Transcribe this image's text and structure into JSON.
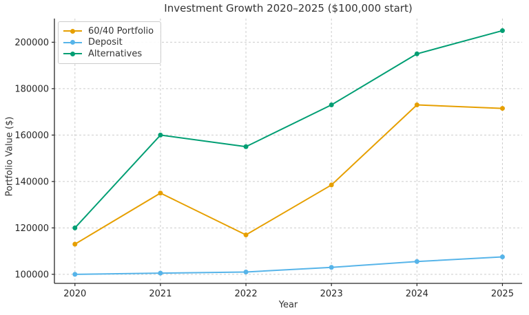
{
  "chart_data": {
    "type": "line",
    "title": "Investment Growth 2020–2025 ($100,000 start)",
    "xlabel": "Year",
    "ylabel": "Portfolio Value ($)",
    "x": [
      2020,
      2021,
      2022,
      2023,
      2024,
      2025
    ],
    "series": [
      {
        "name": "60/40 Portfolio",
        "color": "#E69F00",
        "values": [
          113000,
          135000,
          117000,
          138500,
          173000,
          171500
        ]
      },
      {
        "name": "Deposit",
        "color": "#56B4E9",
        "values": [
          100000,
          100500,
          101000,
          103000,
          105500,
          107500
        ]
      },
      {
        "name": "Alternatives",
        "color": "#009E73",
        "values": [
          120000,
          160000,
          155000,
          173000,
          195000,
          205000
        ]
      }
    ],
    "yticks": [
      100000,
      120000,
      140000,
      160000,
      180000,
      200000
    ],
    "ylim": [
      96100,
      210200
    ],
    "xlim": [
      2019.76,
      2025.23
    ],
    "legend_position": "upper left",
    "grid": "dashed",
    "colors": {
      "spine": "#262626",
      "grid": "#cccccc",
      "tick_text": "#262626"
    }
  }
}
